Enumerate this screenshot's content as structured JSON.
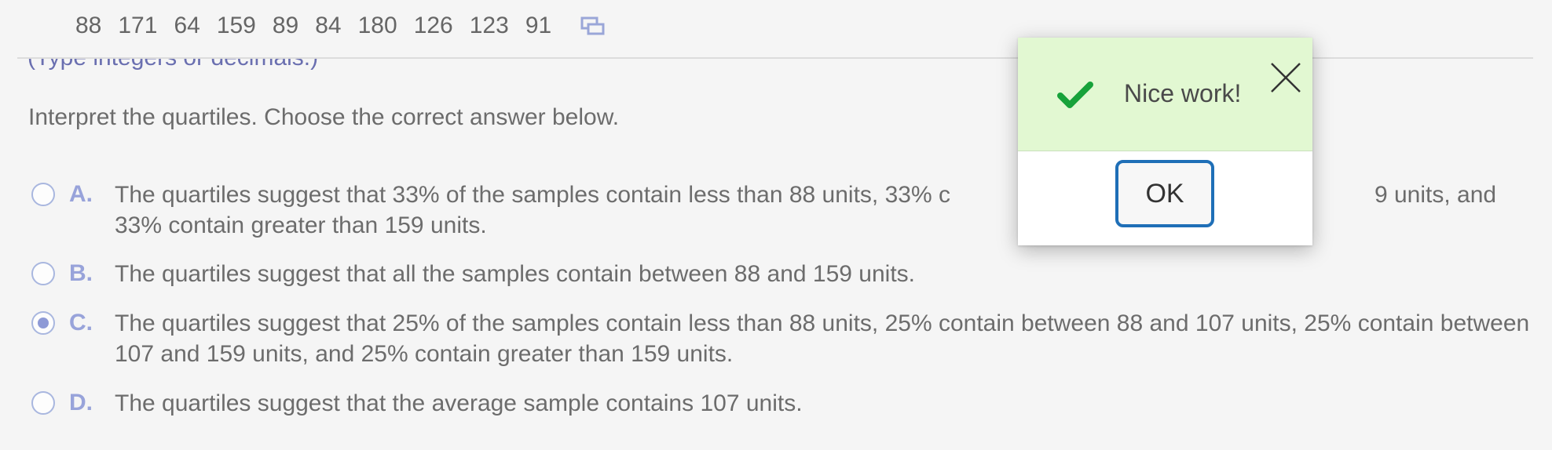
{
  "data_values": [
    "88",
    "171",
    "64",
    "159",
    "89",
    "84",
    "180",
    "126",
    "123",
    "91"
  ],
  "hint": "(Type integers or decimals.)",
  "question": "Interpret the quartiles. Choose the correct answer below.",
  "options": [
    {
      "letter": "A.",
      "text": "The quartiles suggest that 33% of the samples contain less than 88 units, 33% c                  \u00039 units, and 33% contain greater than 159 units.",
      "selected": false
    },
    {
      "letter": "B.",
      "text": "The quartiles suggest that all the samples contain between 88 and 159 units.",
      "selected": false
    },
    {
      "letter": "C.",
      "text": "The quartiles suggest that 25% of the samples contain less than 88 units, 25% contain  between 88 and 107 units, 25% contain between 107 and 159 units, and 25% contain greater than 159 units.",
      "selected": true
    },
    {
      "letter": "D.",
      "text": "The quartiles suggest that the average sample contains 107 units.",
      "selected": false
    }
  ],
  "toast": {
    "message": "Nice work!",
    "ok_label": "OK",
    "check_icon": "checkmark-icon",
    "close_icon": "close-icon",
    "success_color": "#17a23a"
  },
  "colors": {
    "radio_border": "#a9b7df",
    "radio_selected": "#8e9ad6",
    "letter": "#98a3da",
    "focus": "#1f6fb7",
    "toast_bg": "#e2f8d2"
  }
}
